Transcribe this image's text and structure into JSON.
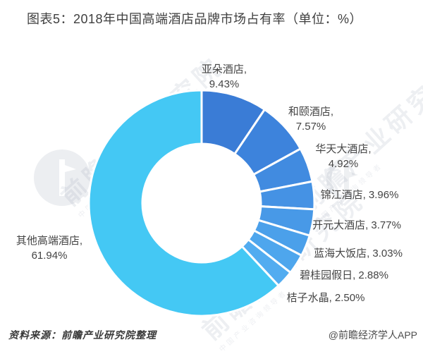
{
  "header": {
    "title": "图表5：2018年中国高端酒店品牌市场占有率（单位：%）"
  },
  "chart_data": {
    "type": "pie",
    "subtype": "donut",
    "title": "图表5：2018年中国高端酒店品牌市场占有率（单位：%）",
    "unit": "%",
    "categories": [
      "亚朵酒店",
      "和颐酒店",
      "华天大酒店",
      "锦江酒店",
      "开元大酒店",
      "蓝海大饭店",
      "碧桂园假日",
      "桔子水晶",
      "其他高端酒店"
    ],
    "values": [
      9.43,
      7.57,
      4.92,
      3.96,
      3.77,
      3.03,
      2.88,
      2.5,
      61.94
    ],
    "colors": [
      "#3a7cd6",
      "#3d83dc",
      "#418be0",
      "#4592e4",
      "#4899e7",
      "#4ba0ea",
      "#4ea6ed",
      "#52acf0",
      "#44c8f4"
    ],
    "slice_border_color": "#ffffff",
    "start_angle_deg": 0,
    "direction": "clockwise",
    "donut_hole_ratio": 0.52,
    "legend": "none",
    "label_format": "name, value%"
  },
  "watermark": {
    "text": "前瞻产业研究院",
    "subtext": "中国产业咨询领导者",
    "logo": "qianzhan-logo"
  },
  "footer": {
    "source": "资料来源：前瞻产业研究院整理",
    "credit": "@前瞻经济学人APP"
  }
}
